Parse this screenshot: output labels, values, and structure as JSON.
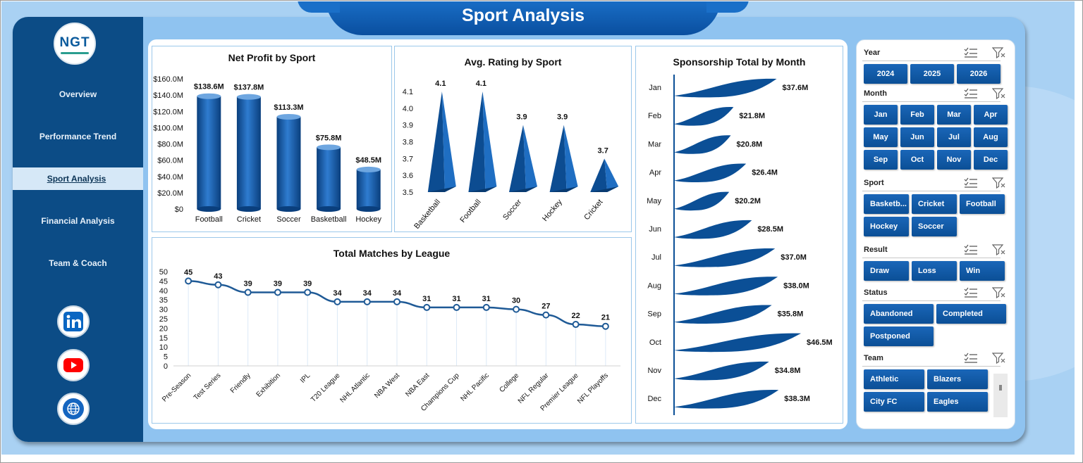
{
  "header": {
    "title": "Sport Analysis"
  },
  "sidebar": {
    "logo_text": "NGT",
    "items": [
      {
        "label": "Overview"
      },
      {
        "label": "Performance Trend"
      },
      {
        "label": "Sport Analysis",
        "active": true
      },
      {
        "label": "Financial Analysis"
      },
      {
        "label": "Team & Coach"
      }
    ],
    "social": [
      "linkedin-icon",
      "youtube-icon",
      "globe-icon"
    ]
  },
  "charts": {
    "net_profit_title": "Net Profit by Sport",
    "rating_title": "Avg. Rating by Sport",
    "sponsorship_title": "Sponsorship Total by Month",
    "matches_title": "Total Matches by League"
  },
  "chart_data": [
    {
      "type": "bar",
      "title": "Net Profit by Sport",
      "categories": [
        "Football",
        "Cricket",
        "Soccer",
        "Basketball",
        "Hockey"
      ],
      "values": [
        138.6,
        137.8,
        113.3,
        75.8,
        48.5
      ],
      "value_labels": [
        "$138.6M",
        "$137.8M",
        "$113.3M",
        "$75.8M",
        "$48.5M"
      ],
      "ylim": [
        0,
        160
      ],
      "yticks": [
        "$0",
        "$20.0M",
        "$40.0M",
        "$60.0M",
        "$80.0M",
        "$100.0M",
        "$120.0M",
        "$140.0M",
        "$160.0M"
      ],
      "color": "#0b4f96"
    },
    {
      "type": "bar",
      "title": "Avg. Rating by Sport",
      "categories": [
        "Basketball",
        "Football",
        "Soccer",
        "Hockey",
        "Cricket"
      ],
      "values": [
        4.1,
        4.1,
        3.9,
        3.9,
        3.7
      ],
      "ylim": [
        3.5,
        4.1
      ],
      "yticks": [
        "3.5",
        "3.6",
        "3.7",
        "3.8",
        "3.9",
        "4.0",
        "4.1"
      ],
      "color": "#0b4f96"
    },
    {
      "type": "bar",
      "title": "Sponsorship Total by Month",
      "categories": [
        "Jan",
        "Feb",
        "Mar",
        "Apr",
        "May",
        "Jun",
        "Jul",
        "Aug",
        "Sep",
        "Oct",
        "Nov",
        "Dec"
      ],
      "values": [
        37.6,
        21.8,
        20.8,
        26.4,
        20.2,
        28.5,
        37.0,
        38.0,
        35.8,
        46.5,
        34.8,
        38.3
      ],
      "value_labels": [
        "$37.6M",
        "$21.8M",
        "$20.8M",
        "$26.4M",
        "$20.2M",
        "$28.5M",
        "$37.0M",
        "$38.0M",
        "$35.8M",
        "$46.5M",
        "$34.8M",
        "$38.3M"
      ],
      "orientation": "horizontal",
      "color": "#0b4f96"
    },
    {
      "type": "line",
      "title": "Total Matches by League",
      "categories": [
        "Pre-Season",
        "Test Series",
        "Friendly",
        "Exhibition",
        "IPL",
        "T20 League",
        "NHL Atlantic",
        "NBA West",
        "NBA East",
        "Champions Cup",
        "NHL Pacific",
        "College",
        "NFL Regular",
        "Premier League",
        "NFL Playoffs"
      ],
      "values": [
        45,
        43,
        39,
        39,
        39,
        34,
        34,
        34,
        31,
        31,
        31,
        30,
        27,
        22,
        21
      ],
      "ylim": [
        0,
        50
      ],
      "yticks": [
        "0",
        "5",
        "10",
        "15",
        "20",
        "25",
        "30",
        "35",
        "40",
        "45",
        "50"
      ],
      "color": "#1f5a96"
    }
  ],
  "filters": {
    "year": {
      "title": "Year",
      "options": [
        "2024",
        "2025",
        "2026"
      ]
    },
    "month": {
      "title": "Month",
      "options": [
        "Jan",
        "Feb",
        "Mar",
        "Apr",
        "May",
        "Jun",
        "Jul",
        "Aug",
        "Sep",
        "Oct",
        "Nov",
        "Dec"
      ]
    },
    "sport": {
      "title": "Sport",
      "options": [
        "Basketb...",
        "Cricket",
        "Football",
        "Hockey",
        "Soccer"
      ]
    },
    "result": {
      "title": "Result",
      "options": [
        "Draw",
        "Loss",
        "Win"
      ]
    },
    "status": {
      "title": "Status",
      "options": [
        "Abandoned",
        "Completed",
        "Postponed"
      ]
    },
    "team": {
      "title": "Team",
      "options": [
        "Athletic",
        "Blazers",
        "City FC",
        "Eagles"
      ]
    }
  }
}
